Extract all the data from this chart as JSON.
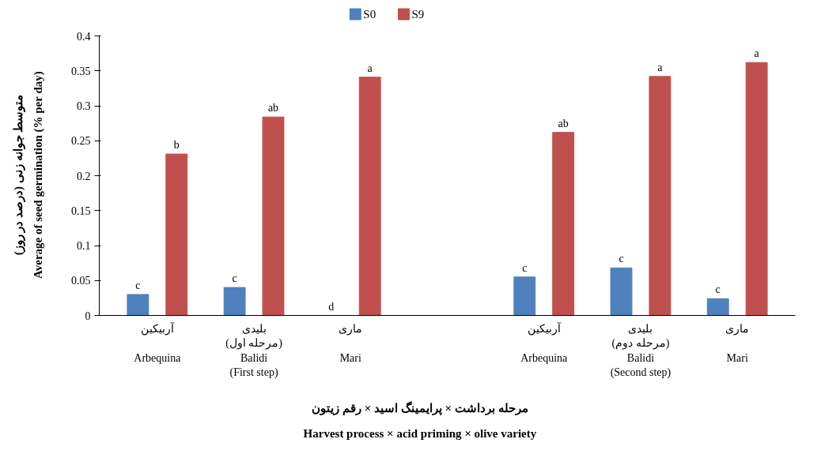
{
  "chart_data": {
    "type": "bar",
    "ylabel": "متوسط جوانه زنی (درصد در روز)\nAverage of seed germination (% per day)",
    "xlabel": "مرحله برداشت × پرایمینگ اسید × رقم زیتون\nHarvest process × acid priming × olive variety",
    "categories": [
      "آربیکین\n\nArbequina",
      "بلیدی\n(مرحله اول)\nBalidi\n(First step)",
      "ماری\n\nMari",
      null,
      "آربیکین\n\nArbequina",
      "بلیدی\n(مرحله دوم)\nBalidi\n(Second step)",
      "ماری\n\nMari"
    ],
    "series": [
      {
        "name": "S0",
        "color": "#4f81bd",
        "values": [
          0.03,
          0.04,
          0,
          null,
          0.055,
          0.068,
          0.024
        ],
        "value_labels": [
          "c",
          "c",
          "d",
          null,
          "c",
          "c",
          "c"
        ]
      },
      {
        "name": "S9",
        "color": "#c0504d",
        "values": [
          0.231,
          0.284,
          0.341,
          null,
          0.262,
          0.342,
          0.362
        ],
        "value_labels": [
          "b",
          "ab",
          "a",
          null,
          "ab",
          "a",
          "a"
        ]
      }
    ],
    "ylim": [
      0,
      0.4
    ],
    "yticks": [
      0,
      0.05,
      0.1,
      0.15,
      0.2,
      0.25,
      0.3,
      0.35,
      0.4
    ],
    "grid": false,
    "legend": "top"
  }
}
